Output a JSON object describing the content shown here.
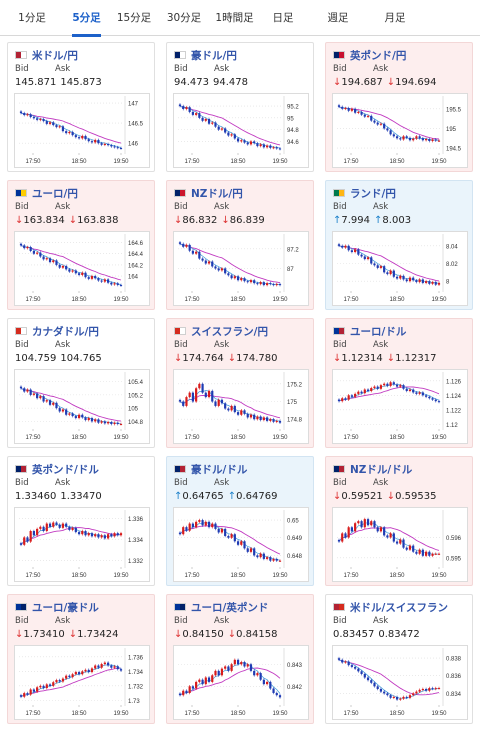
{
  "tabs": [
    {
      "label": "1分足",
      "active": false
    },
    {
      "label": "5分足",
      "active": true
    },
    {
      "label": "15分足",
      "active": false
    },
    {
      "label": "30分足",
      "active": false
    },
    {
      "label": "1時間足",
      "active": false
    },
    {
      "label": "日足",
      "active": false
    },
    {
      "label": "週足",
      "active": false
    },
    {
      "label": "月足",
      "active": false
    }
  ],
  "labels": {
    "bid": "Bid",
    "ask": "Ask"
  },
  "colors": {
    "down_bg": "#fdeeee",
    "up_bg": "#eaf4fb",
    "down_arrow": "#dd3333",
    "up_arrow": "#1a7fc9",
    "title": "#3355aa",
    "tab_active": "#1d61c9",
    "candle_up": "#d81b1b",
    "candle_down": "#1f3bb3",
    "ma_long": "#c13ac1",
    "ma_short": "#3a9ad9"
  },
  "pairs": [
    {
      "name": "米ドル/円",
      "flag": [
        "#b22234",
        "#ffffff"
      ],
      "state": "neutral",
      "bid_arrow": "",
      "ask_arrow": "",
      "bid": "145.871",
      "ask": "145.873",
      "chart_data": {
        "type": "candlestick",
        "x_ticks": [
          "17:50",
          "18:50",
          "19:50"
        ],
        "y_ticks": [
          147,
          146.5,
          146
        ],
        "ylim": [
          145.78,
          147.1
        ],
        "closes": [
          146.75,
          146.7,
          146.72,
          146.65,
          146.62,
          146.58,
          146.6,
          146.55,
          146.48,
          146.52,
          146.45,
          146.4,
          146.42,
          146.3,
          146.25,
          146.28,
          146.2,
          146.15,
          146.12,
          146.18,
          146.1,
          146.05,
          146.02,
          146.08,
          146.0,
          145.96,
          145.98,
          145.95,
          145.92,
          145.9,
          145.88,
          145.87
        ]
      }
    },
    {
      "name": "豪ドル/円",
      "flag": [
        "#012169",
        "#ffffff"
      ],
      "state": "neutral",
      "bid_arrow": "",
      "ask_arrow": "",
      "bid": "94.473",
      "ask": "94.478",
      "chart_data": {
        "type": "candlestick",
        "x_ticks": [
          "17:50",
          "18:50",
          "19:50"
        ],
        "y_ticks": [
          95.2,
          95,
          94.8,
          94.6
        ],
        "ylim": [
          94.42,
          95.32
        ],
        "closes": [
          95.2,
          95.15,
          95.18,
          95.1,
          95.05,
          95.08,
          95.0,
          94.95,
          94.98,
          94.9,
          94.92,
          94.85,
          94.8,
          94.82,
          94.75,
          94.7,
          94.72,
          94.65,
          94.6,
          94.62,
          94.58,
          94.55,
          94.6,
          94.57,
          94.52,
          94.55,
          94.5,
          94.53,
          94.49,
          94.5,
          94.48,
          94.47
        ]
      }
    },
    {
      "name": "英ポンド/円",
      "flag": [
        "#012169",
        "#c8102e"
      ],
      "state": "down",
      "bid_arrow": "↓",
      "ask_arrow": "↓",
      "bid": "194.687",
      "ask": "194.694",
      "chart_data": {
        "type": "candlestick",
        "x_ticks": [
          "17:50",
          "18:50",
          "19:50"
        ],
        "y_ticks": [
          195.5,
          195,
          194.5
        ],
        "ylim": [
          194.4,
          195.75
        ],
        "closes": [
          195.55,
          195.5,
          195.52,
          195.45,
          195.5,
          195.4,
          195.42,
          195.35,
          195.3,
          195.32,
          195.2,
          195.15,
          195.1,
          195.12,
          195.0,
          194.95,
          194.85,
          194.8,
          194.75,
          194.72,
          194.8,
          194.76,
          194.7,
          194.74,
          194.8,
          194.75,
          194.7,
          194.73,
          194.68,
          194.72,
          194.69,
          194.69
        ]
      }
    },
    {
      "name": "ユーロ/円",
      "flag": [
        "#003399",
        "#ffcc00"
      ],
      "state": "down",
      "bid_arrow": "↓",
      "ask_arrow": "↓",
      "bid": "163.834",
      "ask": "163.838",
      "chart_data": {
        "type": "candlestick",
        "x_ticks": [
          "17:50",
          "18:50",
          "19:50"
        ],
        "y_ticks": [
          164.6,
          164.4,
          164.2,
          164
        ],
        "ylim": [
          163.75,
          164.7
        ],
        "closes": [
          164.55,
          164.5,
          164.52,
          164.45,
          164.4,
          164.42,
          164.35,
          164.3,
          164.32,
          164.25,
          164.28,
          164.2,
          164.15,
          164.18,
          164.12,
          164.08,
          164.1,
          164.05,
          164.02,
          164.06,
          163.98,
          163.95,
          164.0,
          163.96,
          163.92,
          163.9,
          163.94,
          163.88,
          163.85,
          163.87,
          163.84,
          163.83
        ]
      }
    },
    {
      "name": "NZドル/円",
      "flag": [
        "#012169",
        "#cc142b"
      ],
      "state": "down",
      "bid_arrow": "↓",
      "ask_arrow": "↓",
      "bid": "86.832",
      "ask": "86.839",
      "chart_data": {
        "type": "candlestick",
        "x_ticks": [
          "17:50",
          "18:50",
          "19:50"
        ],
        "y_ticks": [
          87.2,
          87
        ],
        "ylim": [
          86.78,
          87.32
        ],
        "closes": [
          87.25,
          87.22,
          87.24,
          87.18,
          87.15,
          87.17,
          87.1,
          87.08,
          87.05,
          87.07,
          87.02,
          87.0,
          86.98,
          87.0,
          86.95,
          86.93,
          86.9,
          86.92,
          86.88,
          86.9,
          86.87,
          86.86,
          86.88,
          86.85,
          86.84,
          86.86,
          86.83,
          86.85,
          86.84,
          86.83,
          86.84,
          86.83
        ]
      }
    },
    {
      "name": "ランド/円",
      "flag": [
        "#007a4d",
        "#ffb612"
      ],
      "state": "up",
      "bid_arrow": "↑",
      "ask_arrow": "↑",
      "bid": "7.994",
      "ask": "8.003",
      "chart_data": {
        "type": "candlestick",
        "x_ticks": [
          "17:50",
          "18:50",
          "19:50"
        ],
        "y_ticks": [
          8.04,
          8.02,
          8
        ],
        "ylim": [
          7.99,
          8.05
        ],
        "closes": [
          8.04,
          8.038,
          8.04,
          8.035,
          8.033,
          8.036,
          8.03,
          8.028,
          8.025,
          8.027,
          8.02,
          8.018,
          8.015,
          8.017,
          8.01,
          8.008,
          8.012,
          8.005,
          8.003,
          8.006,
          8.002,
          8.0,
          8.004,
          8.001,
          7.999,
          8.002,
          7.998,
          8.0,
          7.997,
          7.999,
          7.996,
          7.998
        ]
      }
    },
    {
      "name": "カナダドル/円",
      "flag": [
        "#d52b1e",
        "#ffffff"
      ],
      "state": "neutral",
      "bid_arrow": "",
      "ask_arrow": "",
      "bid": "104.759",
      "ask": "104.765",
      "chart_data": {
        "type": "candlestick",
        "x_ticks": [
          "17:50",
          "18:50",
          "19:50"
        ],
        "y_ticks": [
          105.4,
          105.2,
          105,
          104.8
        ],
        "ylim": [
          104.7,
          105.5
        ],
        "closes": [
          105.3,
          105.25,
          105.28,
          105.2,
          105.22,
          105.15,
          105.18,
          105.1,
          105.12,
          105.05,
          105.08,
          105.0,
          104.95,
          104.98,
          104.9,
          104.92,
          104.88,
          104.85,
          104.9,
          104.86,
          104.82,
          104.85,
          104.8,
          104.83,
          104.78,
          104.8,
          104.77,
          104.79,
          104.76,
          104.78,
          104.76,
          104.76
        ]
      }
    },
    {
      "name": "スイスフラン/円",
      "flag": [
        "#d52b1e",
        "#ffffff"
      ],
      "state": "down",
      "bid_arrow": "↓",
      "ask_arrow": "↓",
      "bid": "174.764",
      "ask": "174.780",
      "chart_data": {
        "type": "candlestick",
        "x_ticks": [
          "17:50",
          "18:50",
          "19:50"
        ],
        "y_ticks": [
          175.2,
          175,
          174.8
        ],
        "ylim": [
          174.7,
          175.3
        ],
        "closes": [
          175.0,
          174.95,
          175.05,
          175.1,
          175.0,
          175.15,
          175.2,
          175.1,
          175.05,
          175.12,
          175.0,
          174.95,
          175.02,
          174.98,
          174.92,
          174.9,
          174.95,
          174.88,
          174.85,
          174.9,
          174.86,
          174.82,
          174.85,
          174.8,
          174.83,
          174.79,
          174.82,
          174.78,
          174.8,
          174.77,
          174.78,
          174.76
        ]
      }
    },
    {
      "name": "ユーロ/ドル",
      "flag": [
        "#003399",
        "#b22234"
      ],
      "state": "down",
      "bid_arrow": "↓",
      "ask_arrow": "↓",
      "bid": "1.12314",
      "ask": "1.12317",
      "chart_data": {
        "type": "candlestick",
        "x_ticks": [
          "17:50",
          "18:50",
          "19:50"
        ],
        "y_ticks": [
          1.126,
          1.124,
          1.122,
          1.12
        ],
        "ylim": [
          1.1195,
          1.1268
        ],
        "closes": [
          1.1232,
          1.1236,
          1.1234,
          1.124,
          1.1238,
          1.1242,
          1.1245,
          1.1243,
          1.1248,
          1.1246,
          1.125,
          1.1252,
          1.1249,
          1.1254,
          1.1256,
          1.1253,
          1.1258,
          1.1255,
          1.1252,
          1.1254,
          1.1249,
          1.1246,
          1.1248,
          1.1244,
          1.1242,
          1.1244,
          1.124,
          1.1238,
          1.1236,
          1.1234,
          1.1232,
          1.1231
        ]
      }
    },
    {
      "name": "英ポンド/ドル",
      "flag": [
        "#012169",
        "#b22234"
      ],
      "state": "neutral",
      "bid_arrow": "",
      "ask_arrow": "",
      "bid": "1.33460",
      "ask": "1.33470",
      "chart_data": {
        "type": "candlestick",
        "x_ticks": [
          "17:50",
          "18:50",
          "19:50"
        ],
        "y_ticks": [
          1.336,
          1.334,
          1.332
        ],
        "ylim": [
          1.3315,
          1.3365
        ],
        "closes": [
          1.3335,
          1.3342,
          1.3338,
          1.3348,
          1.3344,
          1.335,
          1.3352,
          1.3348,
          1.3355,
          1.3352,
          1.3356,
          1.3354,
          1.3351,
          1.3355,
          1.3352,
          1.3349,
          1.3351,
          1.3347,
          1.3345,
          1.3348,
          1.3344,
          1.3346,
          1.3343,
          1.3345,
          1.3342,
          1.3344,
          1.3341,
          1.3345,
          1.3343,
          1.3346,
          1.3344,
          1.3346
        ]
      }
    },
    {
      "name": "豪ドル/ドル",
      "flag": [
        "#012169",
        "#b22234"
      ],
      "state": "up",
      "bid_arrow": "↑",
      "ask_arrow": "↑",
      "bid": "0.64765",
      "ask": "0.64769",
      "chart_data": {
        "type": "candlestick",
        "x_ticks": [
          "17:50",
          "18:50",
          "19:50"
        ],
        "y_ticks": [
          0.65,
          0.649,
          0.648
        ],
        "ylim": [
          0.6474,
          0.6504
        ],
        "closes": [
          0.6492,
          0.6496,
          0.6494,
          0.6498,
          0.6496,
          0.6499,
          0.65,
          0.6497,
          0.6499,
          0.6496,
          0.6498,
          0.6495,
          0.6493,
          0.6495,
          0.6491,
          0.649,
          0.6492,
          0.6488,
          0.6486,
          0.6488,
          0.6484,
          0.6482,
          0.6484,
          0.648,
          0.6479,
          0.6481,
          0.6478,
          0.6479,
          0.6477,
          0.6478,
          0.6477,
          0.6477
        ]
      }
    },
    {
      "name": "NZドル/ドル",
      "flag": [
        "#012169",
        "#b22234"
      ],
      "state": "down",
      "bid_arrow": "↓",
      "ask_arrow": "↓",
      "bid": "0.59521",
      "ask": "0.59535",
      "chart_data": {
        "type": "candlestick",
        "x_ticks": [
          "17:50",
          "18:50",
          "19:50"
        ],
        "y_ticks": [
          0.596,
          0.595
        ],
        "ylim": [
          0.5946,
          0.5972
        ],
        "closes": [
          0.5958,
          0.5962,
          0.596,
          0.5965,
          0.5963,
          0.5967,
          0.5968,
          0.5965,
          0.5969,
          0.5966,
          0.5968,
          0.5965,
          0.5963,
          0.5965,
          0.5961,
          0.596,
          0.5962,
          0.5958,
          0.5957,
          0.5959,
          0.5955,
          0.5954,
          0.5956,
          0.5953,
          0.5952,
          0.5954,
          0.5951,
          0.5953,
          0.5951,
          0.5952,
          0.5952,
          0.5952
        ]
      }
    },
    {
      "name": "ユーロ/豪ドル",
      "flag": [
        "#003399",
        "#012169"
      ],
      "state": "down",
      "bid_arrow": "↓",
      "ask_arrow": "↓",
      "bid": "1.73410",
      "ask": "1.73424",
      "chart_data": {
        "type": "candlestick",
        "x_ticks": [
          "17:50",
          "18:50",
          "19:50"
        ],
        "y_ticks": [
          1.736,
          1.734,
          1.732,
          1.73
        ],
        "ylim": [
          1.7295,
          1.7368
        ],
        "closes": [
          1.7305,
          1.731,
          1.7308,
          1.7315,
          1.7312,
          1.7318,
          1.732,
          1.7317,
          1.7322,
          1.732,
          1.7325,
          1.7328,
          1.7326,
          1.733,
          1.7334,
          1.7332,
          1.7336,
          1.7339,
          1.7336,
          1.734,
          1.7342,
          1.7339,
          1.7344,
          1.7348,
          1.7345,
          1.735,
          1.7352,
          1.7348,
          1.7345,
          1.7347,
          1.7343,
          1.7341
        ]
      }
    },
    {
      "name": "ユーロ/英ポンド",
      "flag": [
        "#003399",
        "#012169"
      ],
      "state": "down",
      "bid_arrow": "↓",
      "ask_arrow": "↓",
      "bid": "0.84150",
      "ask": "0.84158",
      "chart_data": {
        "type": "candlestick",
        "x_ticks": [
          "17:50",
          "18:50",
          "19:50"
        ],
        "y_ticks": [
          0.843,
          0.842
        ],
        "ylim": [
          0.8412,
          0.8436
        ],
        "closes": [
          0.8416,
          0.8418,
          0.8417,
          0.842,
          0.8419,
          0.8422,
          0.8423,
          0.8421,
          0.8424,
          0.8422,
          0.8425,
          0.8427,
          0.8425,
          0.8428,
          0.8429,
          0.8427,
          0.843,
          0.8432,
          0.843,
          0.8431,
          0.8429,
          0.843,
          0.8427,
          0.8425,
          0.8426,
          0.8423,
          0.8421,
          0.8422,
          0.8419,
          0.8417,
          0.8416,
          0.8415
        ]
      }
    },
    {
      "name": "米ドル/スイスフラン",
      "flag": [
        "#b22234",
        "#d52b1e"
      ],
      "state": "neutral",
      "bid_arrow": "",
      "ask_arrow": "",
      "bid": "0.83457",
      "ask": "0.83472",
      "chart_data": {
        "type": "candlestick",
        "x_ticks": [
          "17:50",
          "18:50",
          "19:50"
        ],
        "y_ticks": [
          0.838,
          0.836,
          0.834
        ],
        "ylim": [
          0.8328,
          0.8388
        ],
        "closes": [
          0.8378,
          0.8375,
          0.8376,
          0.8372,
          0.837,
          0.8368,
          0.8365,
          0.8362,
          0.8358,
          0.8355,
          0.8352,
          0.8348,
          0.8345,
          0.8342,
          0.834,
          0.8338,
          0.8335,
          0.8336,
          0.8333,
          0.8334,
          0.8336,
          0.8335,
          0.8338,
          0.834,
          0.8342,
          0.8344,
          0.8345,
          0.8343,
          0.8346,
          0.8345,
          0.8346,
          0.8346
        ]
      }
    }
  ]
}
